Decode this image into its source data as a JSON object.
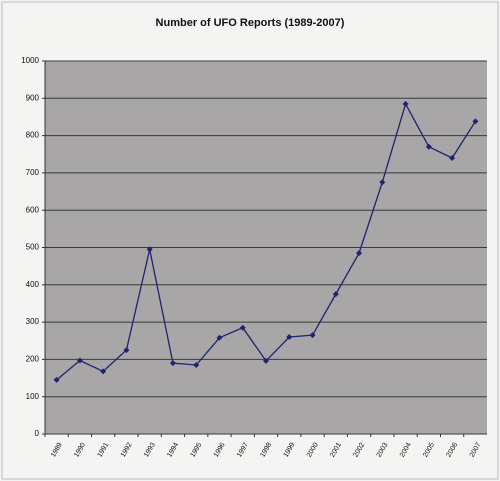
{
  "chart_data": {
    "type": "line",
    "title": "Number of UFO Reports (1989-2007)",
    "categories": [
      "1989",
      "1990",
      "1991",
      "1992",
      "1993",
      "1994",
      "1995",
      "1996",
      "1997",
      "1998",
      "1999",
      "2000",
      "2001",
      "2002",
      "2003",
      "2004",
      "2005",
      "2006",
      "2007"
    ],
    "series": [
      {
        "name": "UFO Reports",
        "color": "#1f2370",
        "values": [
          145,
          197,
          168,
          225,
          495,
          190,
          185,
          258,
          285,
          196,
          260,
          265,
          375,
          485,
          675,
          885,
          770,
          740,
          838
        ]
      }
    ],
    "ylim": [
      0,
      1000
    ],
    "yticks": [
      0,
      100,
      200,
      300,
      400,
      500,
      600,
      700,
      800,
      900,
      1000
    ],
    "grid": true,
    "legend": false
  }
}
